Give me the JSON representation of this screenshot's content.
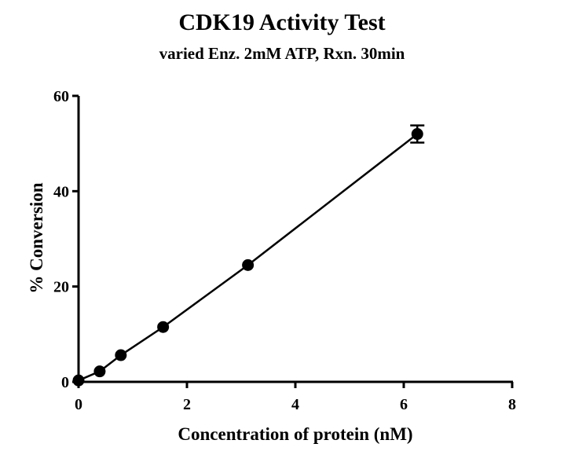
{
  "chart_data": {
    "type": "scatter",
    "title": "CDK19 Activity Test",
    "subtitle": "varied Enz. 2mM ATP, Rxn. 30min",
    "xlabel": "Concentration of protein (nM)",
    "ylabel": "% Conversion",
    "xlim": [
      0,
      8
    ],
    "ylim": [
      0,
      60
    ],
    "x_ticks": [
      0,
      2,
      4,
      6,
      8
    ],
    "y_ticks": [
      0,
      20,
      40,
      60
    ],
    "grid": false,
    "legend": "none",
    "fit_line": true,
    "series": [
      {
        "x": [
          0,
          0.39,
          0.78,
          1.56,
          3.125,
          6.25
        ],
        "y": [
          0.3,
          2.2,
          5.6,
          11.5,
          24.5,
          52
        ],
        "error": [
          0,
          0,
          0,
          0,
          0,
          1.8
        ]
      }
    ]
  }
}
